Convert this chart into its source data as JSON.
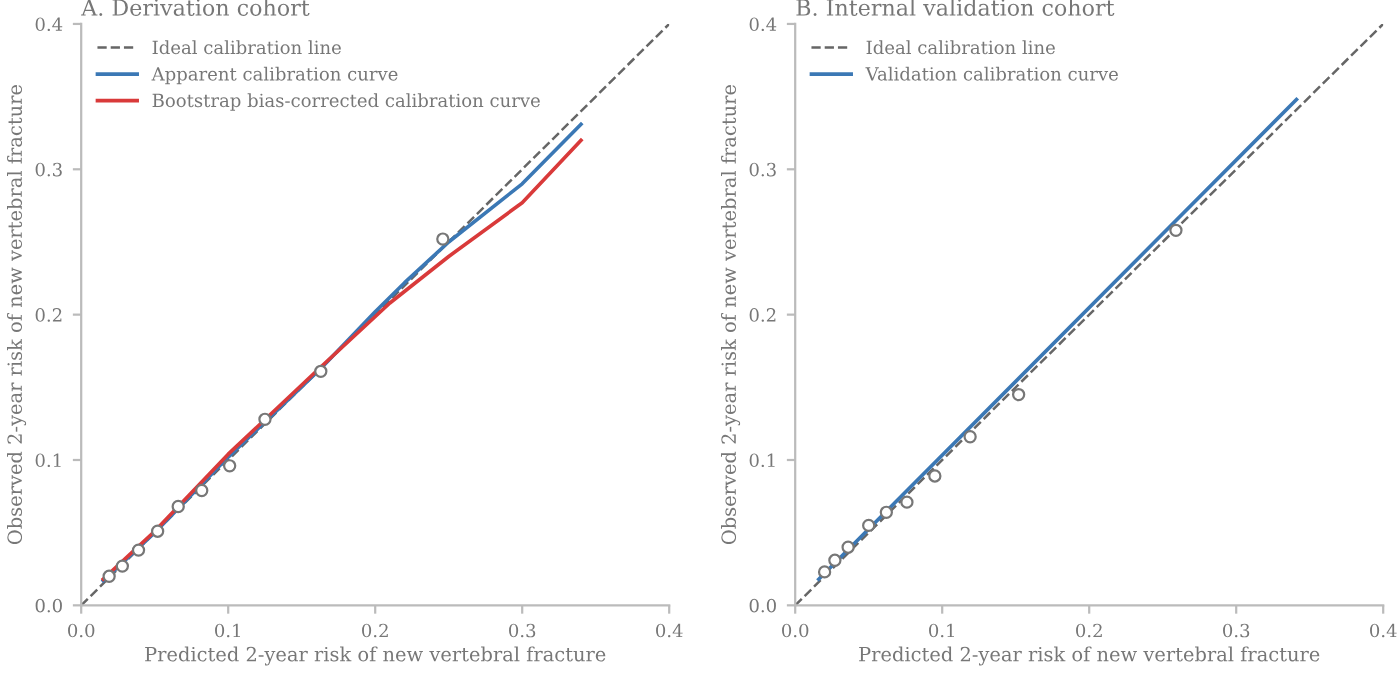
{
  "chart_data": [
    {
      "type": "line",
      "title": "A. Derivation cohort",
      "xlabel": "Predicted 2-year risk of new vertebral fracture",
      "ylabel": "Observed 2-year risk of new vertebral fracture",
      "xlim": [
        0,
        0.4
      ],
      "ylim": [
        0,
        0.4
      ],
      "xticks": [
        {
          "value": 0,
          "label": "0.0"
        },
        0.1,
        0.2,
        0.3,
        0.4
      ],
      "yticks": [
        {
          "value": 0,
          "label": "0.0"
        },
        0.1,
        0.2,
        0.3,
        0.4
      ],
      "grid": false,
      "legend": "top left",
      "series": [
        {
          "name": "Ideal calibration line",
          "line_style": "dashed",
          "color": "#666666",
          "x": [
            0,
            0.4
          ],
          "values": [
            0,
            0.4
          ]
        },
        {
          "name": "Apparent calibration curve",
          "line_style": "solid",
          "color": "#3b78b5",
          "x": [
            0.015,
            0.05,
            0.1,
            0.163,
            0.2,
            0.22,
            0.25,
            0.3,
            0.34
          ],
          "values": [
            0.017,
            0.05,
            0.102,
            0.163,
            0.202,
            0.222,
            0.25,
            0.29,
            0.331
          ]
        },
        {
          "name": "Bootstrap bias-corrected calibration curve",
          "line_style": "solid",
          "color": "#d93a3a",
          "x": [
            0.015,
            0.05,
            0.1,
            0.163,
            0.21,
            0.25,
            0.3,
            0.34
          ],
          "values": [
            0.018,
            0.051,
            0.104,
            0.164,
            0.208,
            0.24,
            0.277,
            0.32
          ]
        },
        {
          "type": "scatter",
          "marker": "circle",
          "color": "#777777",
          "x": [
            0.019,
            0.028,
            0.039,
            0.052,
            0.066,
            0.082,
            0.101,
            0.125,
            0.163,
            0.246
          ],
          "values": [
            0.02,
            0.027,
            0.038,
            0.051,
            0.068,
            0.079,
            0.096,
            0.128,
            0.161,
            0.252
          ]
        }
      ]
    },
    {
      "type": "line",
      "title": "B. Internal validation cohort",
      "xlabel": "Predicted 2-year risk of new vertebral fracture",
      "ylabel": "Observed 2-year risk of new vertebral fracture",
      "xlim": [
        0,
        0.4
      ],
      "ylim": [
        0,
        0.4
      ],
      "xticks": [
        {
          "value": 0,
          "label": "0.0"
        },
        0.1,
        0.2,
        0.3,
        0.4
      ],
      "yticks": [
        {
          "value": 0,
          "label": "0.0"
        },
        0.1,
        0.2,
        0.3,
        0.4
      ],
      "grid": false,
      "legend": "top left",
      "series": [
        {
          "name": "Ideal calibration line",
          "line_style": "dashed",
          "color": "#666666",
          "x": [
            0,
            0.4
          ],
          "values": [
            0,
            0.4
          ]
        },
        {
          "name": "Validation calibration curve",
          "line_style": "solid",
          "color": "#3b78b5",
          "x": [
            0.016,
            0.341
          ],
          "values": [
            0.018,
            0.348
          ]
        },
        {
          "type": "scatter",
          "marker": "circle",
          "color": "#777777",
          "x": [
            0.02,
            0.027,
            0.036,
            0.05,
            0.062,
            0.076,
            0.095,
            0.119,
            0.152,
            0.259
          ],
          "values": [
            0.023,
            0.031,
            0.04,
            0.055,
            0.064,
            0.071,
            0.089,
            0.116,
            0.145,
            0.258
          ]
        }
      ]
    }
  ]
}
